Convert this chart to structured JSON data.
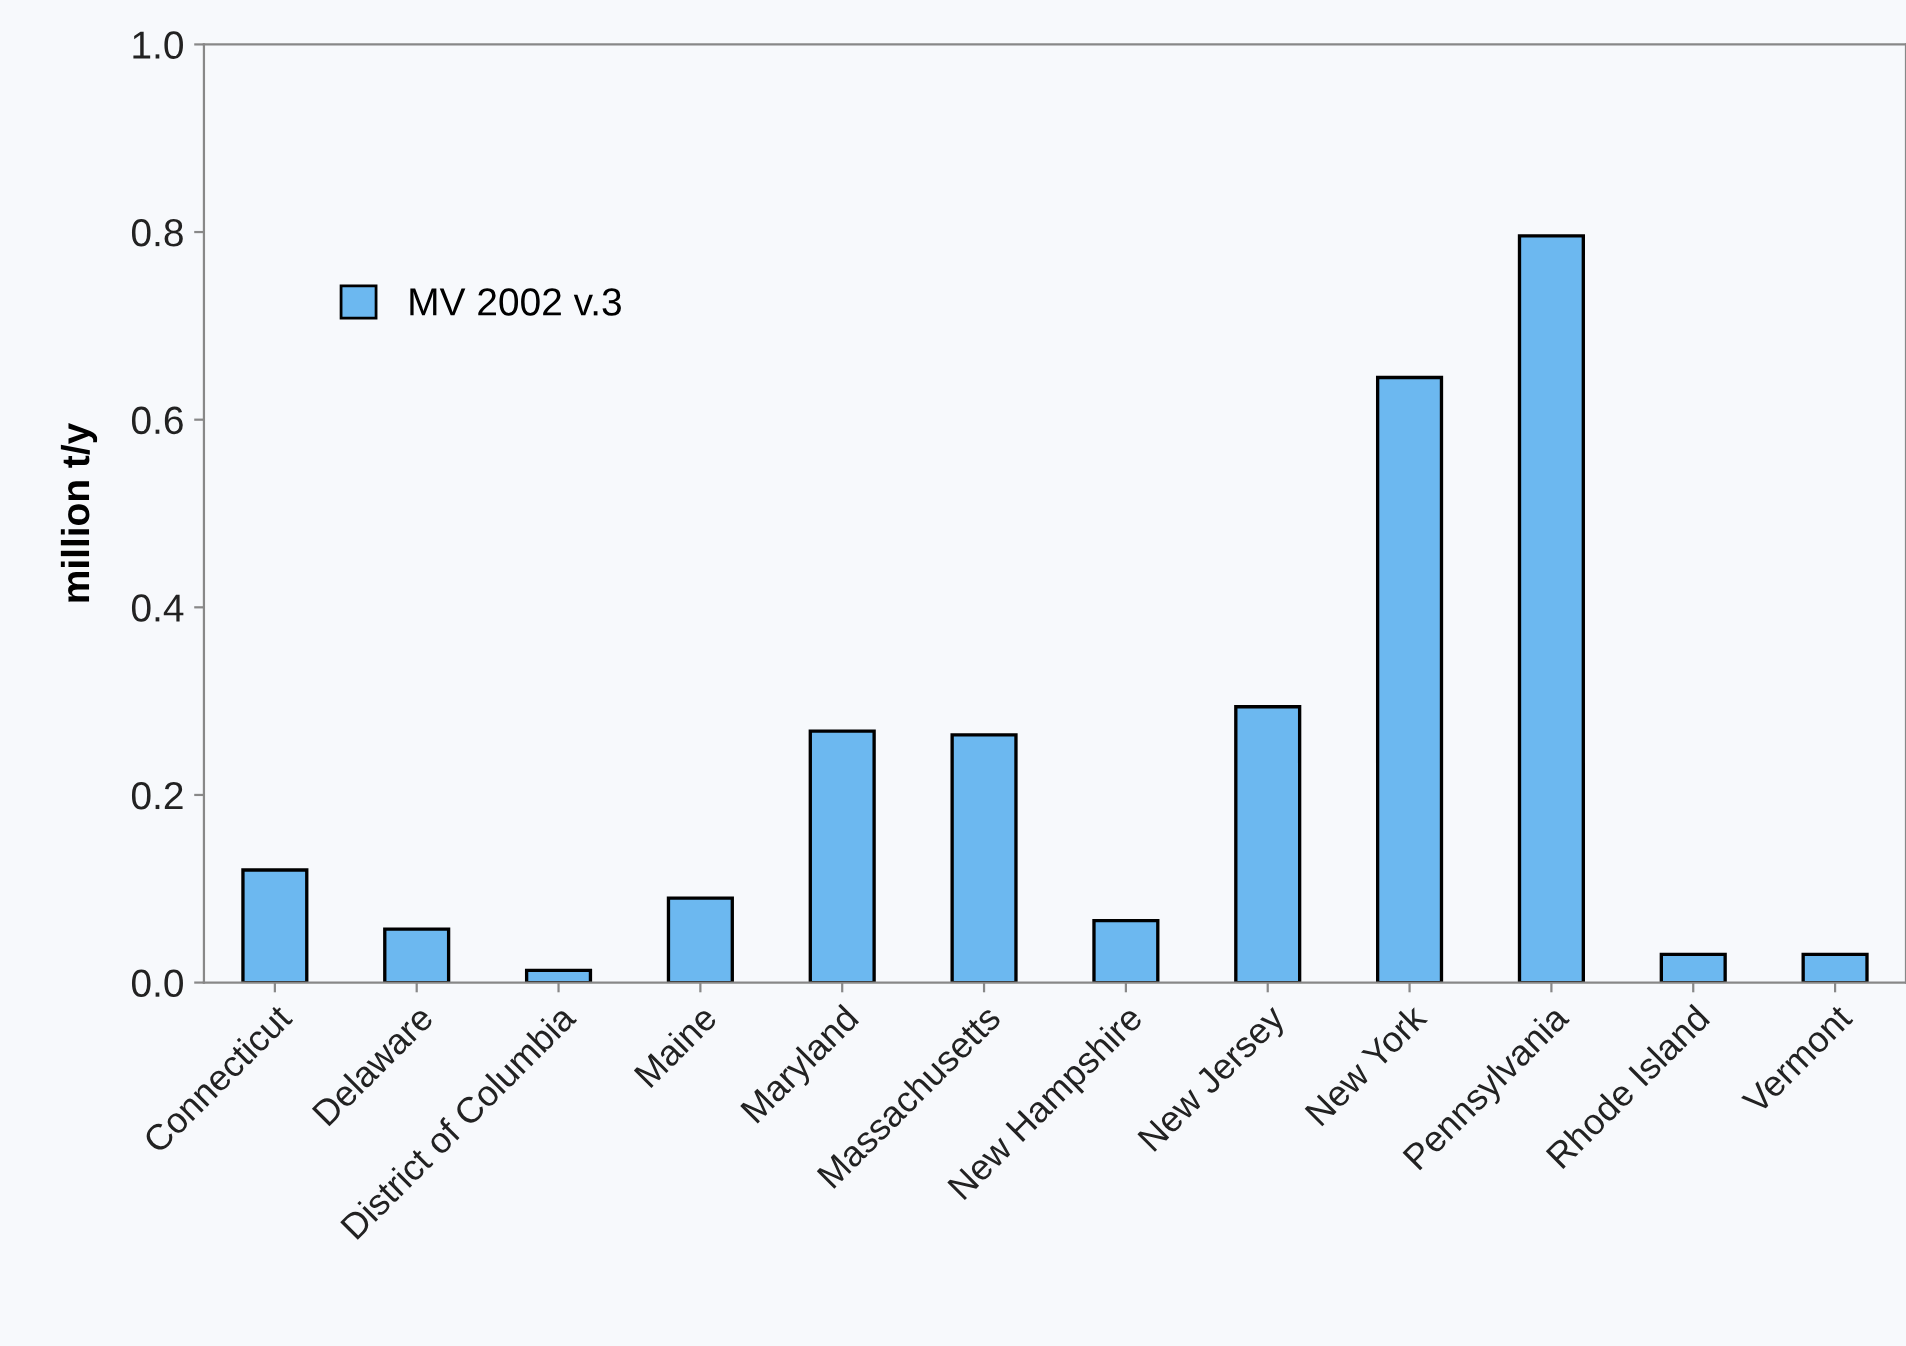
{
  "chart_data": {
    "type": "bar",
    "ylabel": "million t/y",
    "categories": [
      "Connecticut",
      "Delaware",
      "District of Columbia",
      "Maine",
      "Maryland",
      "Massachusetts",
      "New Hampshire",
      "New Jersey",
      "New York",
      "Pennsylvania",
      "Rhode Island",
      "Vermont"
    ],
    "series": [
      {
        "name": "MV 2002 v.3",
        "color": "#6cb8f0",
        "values": [
          0.12,
          0.057,
          0.013,
          0.09,
          0.268,
          0.264,
          0.066,
          0.294,
          0.645,
          0.796,
          0.03,
          0.03
        ]
      }
    ],
    "ylim": [
      0.0,
      1.0
    ],
    "yticks": [
      {
        "value": 0.0,
        "label": "0.0"
      },
      {
        "value": 0.2,
        "label": "0.2"
      },
      {
        "value": 0.4,
        "label": "0.4"
      },
      {
        "value": 0.6,
        "label": "0.6"
      },
      {
        "value": 0.8,
        "label": "0.8"
      },
      {
        "value": 1.0,
        "label": "1.0"
      }
    ],
    "grid": false,
    "legend": "top left"
  }
}
